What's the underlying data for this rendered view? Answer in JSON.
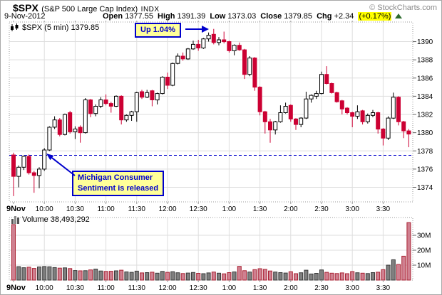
{
  "header": {
    "symbol": "$SPX",
    "name": "(S&P 500 Large Cap Index)",
    "exchange": "INDX",
    "date": "9-Nov-2012",
    "open_label": "Open",
    "open": "1377.55",
    "high_label": "High",
    "high": "1391.39",
    "low_label": "Low",
    "low": "1373.03",
    "close_label": "Close",
    "close": "1379.85",
    "chg_label": "Chg",
    "chg": "+2.34",
    "chg_pct": "(+0.17%)",
    "copyright": "© StockCharts.com"
  },
  "legend": {
    "text": "$SPX (5 min) 1379.85"
  },
  "annotations": {
    "up": {
      "text": "Up 1.04%"
    },
    "michigan": {
      "line1": "Michigan Consumer",
      "line2": "Sentiment is released"
    }
  },
  "colors": {
    "up_candle_fill": "#ffffff",
    "up_candle_stroke": "#000000",
    "down_candle": "#cc0033",
    "volume_up_fill": "#7f7f7f",
    "volume_up_stroke": "#3a3a3a",
    "volume_down_fill": "#cf8090",
    "volume_down_stroke": "#aa2233",
    "grid": "#dedede",
    "frame": "#999999",
    "label": "#000000",
    "prev_close_line": "#0000cc",
    "annotation_blue": "#0000cc",
    "annotation_bg": "#ffff99",
    "highlight": "#ffff00",
    "triangle_green": "#2e6b2e"
  },
  "chart_data": [
    {
      "type": "candlestick",
      "title": "$SPX (5 min) 1379.85",
      "interval": "5 min",
      "session_start": "9:30",
      "prev_close": 1377.51,
      "ylim": [
        1372.4,
        1392.15
      ],
      "y_ticks": [
        1374,
        1376,
        1378,
        1380,
        1382,
        1384,
        1386,
        1388,
        1390
      ],
      "x_ticks": [
        {
          "label": "9Nov",
          "index": 0,
          "bold": true
        },
        {
          "label": "10:00",
          "index": 6
        },
        {
          "label": "10:30",
          "index": 12
        },
        {
          "label": "11:00",
          "index": 18
        },
        {
          "label": "11:30",
          "index": 24
        },
        {
          "label": "12:00",
          "index": 30
        },
        {
          "label": "12:30",
          "index": 36
        },
        {
          "label": "1:00",
          "index": 42
        },
        {
          "label": "1:30",
          "index": 48
        },
        {
          "label": "2:00",
          "index": 54
        },
        {
          "label": "2:30",
          "index": 60
        },
        {
          "label": "3:00",
          "index": 66
        },
        {
          "label": "3:30",
          "index": 72
        }
      ],
      "ohlc": [
        [
          1377.55,
          1377.8,
          1373.03,
          1375.2
        ],
        [
          1375.2,
          1376.4,
          1374.0,
          1376.2
        ],
        [
          1376.2,
          1377.5,
          1375.9,
          1377.4
        ],
        [
          1377.4,
          1377.6,
          1375.4,
          1375.6
        ],
        [
          1375.6,
          1375.8,
          1373.4,
          1375.3
        ],
        [
          1375.3,
          1376.2,
          1373.9,
          1376.0
        ],
        [
          1376.0,
          1378.3,
          1375.8,
          1378.1
        ],
        [
          1378.1,
          1380.7,
          1378.0,
          1380.6
        ],
        [
          1380.6,
          1381.8,
          1380.4,
          1381.4
        ],
        [
          1381.4,
          1381.6,
          1379.6,
          1379.8
        ],
        [
          1379.8,
          1382.1,
          1379.7,
          1382.0
        ],
        [
          1382.2,
          1382.4,
          1379.9,
          1380.1
        ],
        [
          1380.1,
          1380.7,
          1379.3,
          1380.4
        ],
        [
          1380.6,
          1380.8,
          1378.9,
          1380.0
        ],
        [
          1380.0,
          1383.8,
          1379.9,
          1383.6
        ],
        [
          1383.6,
          1383.7,
          1381.7,
          1382.1
        ],
        [
          1382.1,
          1383.1,
          1381.8,
          1382.9
        ],
        [
          1382.9,
          1383.9,
          1382.7,
          1383.6
        ],
        [
          1383.6,
          1384.2,
          1383.0,
          1383.2
        ],
        [
          1383.2,
          1383.4,
          1382.2,
          1382.9
        ],
        [
          1382.9,
          1384.1,
          1382.8,
          1384.0
        ],
        [
          1384.0,
          1384.1,
          1380.9,
          1381.4
        ],
        [
          1381.4,
          1382.0,
          1381.2,
          1381.9
        ],
        [
          1381.9,
          1382.4,
          1381.3,
          1382.3
        ],
        [
          1382.3,
          1384.5,
          1381.2,
          1384.4
        ],
        [
          1384.5,
          1384.7,
          1383.7,
          1383.9
        ],
        [
          1383.9,
          1384.7,
          1383.8,
          1384.4
        ],
        [
          1384.6,
          1384.7,
          1382.9,
          1383.6
        ],
        [
          1383.6,
          1384.4,
          1383.1,
          1384.3
        ],
        [
          1384.3,
          1386.2,
          1384.2,
          1386.1
        ],
        [
          1386.1,
          1386.6,
          1384.8,
          1385.2
        ],
        [
          1385.2,
          1387.7,
          1385.1,
          1387.6
        ],
        [
          1387.6,
          1388.7,
          1387.5,
          1388.4
        ],
        [
          1388.4,
          1388.8,
          1387.9,
          1388.1
        ],
        [
          1388.1,
          1389.3,
          1388.0,
          1389.2
        ],
        [
          1389.2,
          1390.1,
          1389.1,
          1389.7
        ],
        [
          1389.7,
          1390.2,
          1389.0,
          1389.3
        ],
        [
          1389.3,
          1390.4,
          1389.2,
          1390.3
        ],
        [
          1390.3,
          1391.0,
          1390.0,
          1390.7
        ],
        [
          1390.8,
          1391.39,
          1389.7,
          1389.9
        ],
        [
          1389.9,
          1390.5,
          1389.6,
          1390.2
        ],
        [
          1390.2,
          1391.1,
          1389.8,
          1390.0
        ],
        [
          1390.0,
          1390.1,
          1388.8,
          1389.0
        ],
        [
          1389.0,
          1389.7,
          1388.5,
          1389.6
        ],
        [
          1389.6,
          1389.9,
          1389.0,
          1389.1
        ],
        [
          1389.1,
          1389.2,
          1385.9,
          1386.4
        ],
        [
          1386.4,
          1388.4,
          1386.2,
          1388.2
        ],
        [
          1388.2,
          1388.3,
          1384.6,
          1385.0
        ],
        [
          1385.0,
          1385.1,
          1381.9,
          1382.3
        ],
        [
          1382.3,
          1382.4,
          1379.9,
          1381.2
        ],
        [
          1381.2,
          1381.5,
          1378.9,
          1380.3
        ],
        [
          1380.3,
          1381.3,
          1379.8,
          1381.2
        ],
        [
          1381.2,
          1383.0,
          1381.1,
          1382.2
        ],
        [
          1382.2,
          1383.3,
          1382.1,
          1382.9
        ],
        [
          1383.0,
          1383.1,
          1381.2,
          1381.5
        ],
        [
          1381.5,
          1381.6,
          1380.3,
          1380.9
        ],
        [
          1380.9,
          1381.7,
          1380.6,
          1381.6
        ],
        [
          1381.6,
          1384.5,
          1381.5,
          1383.7
        ],
        [
          1383.7,
          1384.2,
          1383.3,
          1384.1
        ],
        [
          1384.0,
          1384.6,
          1383.7,
          1384.3
        ],
        [
          1384.3,
          1386.7,
          1384.2,
          1386.4
        ],
        [
          1386.4,
          1387.3,
          1385.3,
          1385.4
        ],
        [
          1385.4,
          1385.5,
          1384.3,
          1384.4
        ],
        [
          1384.4,
          1384.5,
          1383.3,
          1383.4
        ],
        [
          1383.5,
          1383.6,
          1382.0,
          1382.6
        ],
        [
          1382.7,
          1382.8,
          1382.0,
          1382.2
        ],
        [
          1382.2,
          1382.3,
          1380.6,
          1381.8
        ],
        [
          1381.8,
          1383.0,
          1381.5,
          1382.3
        ],
        [
          1382.4,
          1382.5,
          1380.9,
          1381.2
        ],
        [
          1381.2,
          1382.1,
          1381.0,
          1381.9
        ],
        [
          1381.9,
          1382.5,
          1381.7,
          1382.2
        ],
        [
          1382.2,
          1382.3,
          1379.9,
          1380.4
        ],
        [
          1380.4,
          1380.5,
          1378.6,
          1379.4
        ],
        [
          1379.4,
          1381.8,
          1379.2,
          1381.6
        ],
        [
          1381.6,
          1384.4,
          1381.5,
          1383.9
        ],
        [
          1383.9,
          1384.0,
          1380.8,
          1381.2
        ],
        [
          1381.2,
          1381.3,
          1379.4,
          1380.2
        ],
        [
          1380.2,
          1380.4,
          1378.4,
          1379.85
        ]
      ]
    },
    {
      "type": "bar",
      "title": "Volume 38,493,292",
      "total": "38,493,292",
      "unit": "millions",
      "y_ticks": [
        {
          "v": 10,
          "label": "10M"
        },
        {
          "v": 20,
          "label": "20M"
        },
        {
          "v": 30,
          "label": "30M"
        }
      ],
      "values": [
        37.2,
        9.0,
        8.3,
        8.6,
        7.8,
        8.8,
        9.1,
        8.9,
        8.4,
        8.0,
        8.2,
        7.7,
        6.4,
        6.2,
        6.3,
        6.8,
        7.4,
        6.1,
        5.8,
        5.9,
        6.2,
        6.6,
        5.5,
        5.2,
        6.0,
        4.8,
        5.0,
        5.3,
        4.6,
        5.8,
        5.2,
        5.6,
        4.9,
        4.4,
        4.7,
        5.1,
        4.5,
        4.3,
        4.8,
        5.4,
        4.6,
        4.2,
        5.0,
        5.5,
        9.2,
        6.3,
        5.4,
        7.0,
        7.6,
        7.2,
        6.1,
        5.4,
        5.0,
        4.7,
        5.6,
        4.3,
        4.9,
        6.6,
        4.1,
        4.5,
        6.8,
        5.2,
        4.6,
        4.4,
        4.8,
        4.3,
        5.7,
        4.9,
        4.6,
        4.4,
        5.0,
        5.3,
        7.0,
        10.0,
        13.6,
        10.5,
        16.0,
        38.5
      ]
    }
  ]
}
